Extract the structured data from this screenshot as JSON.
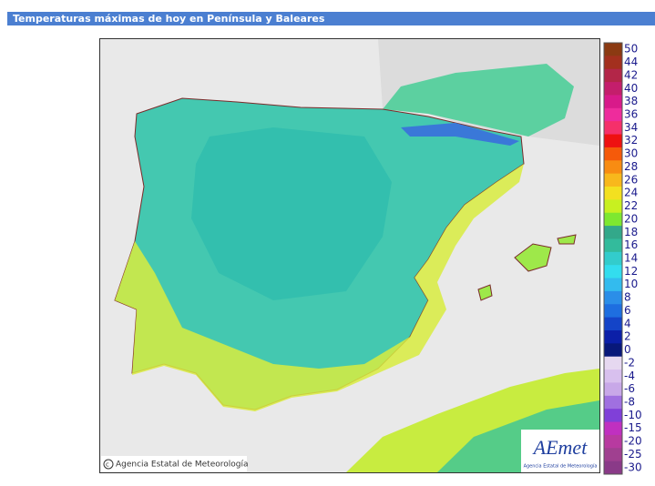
{
  "header": {
    "title": "Temperaturas máximas de hoy en Península y Baleares"
  },
  "legend": {
    "items": [
      {
        "label": 50,
        "color": "#8b3a12"
      },
      {
        "label": 44,
        "color": "#a3301e"
      },
      {
        "label": 42,
        "color": "#b32648"
      },
      {
        "label": 40,
        "color": "#c41e6c"
      },
      {
        "label": 38,
        "color": "#d81a8a"
      },
      {
        "label": 36,
        "color": "#ee2c9c"
      },
      {
        "label": 34,
        "color": "#f5306a"
      },
      {
        "label": 32,
        "color": "#ee1111"
      },
      {
        "label": 30,
        "color": "#f55a0a"
      },
      {
        "label": 28,
        "color": "#f88c12"
      },
      {
        "label": 26,
        "color": "#f8b81c"
      },
      {
        "label": 24,
        "color": "#f3e020"
      },
      {
        "label": 22,
        "color": "#c8f020"
      },
      {
        "label": 20,
        "color": "#7ee830"
      },
      {
        "label": 18,
        "color": "#33a88a"
      },
      {
        "label": 16,
        "color": "#33bb9c"
      },
      {
        "label": 14,
        "color": "#33cccc"
      },
      {
        "label": 12,
        "color": "#33ddee"
      },
      {
        "label": 10,
        "color": "#33bbee"
      },
      {
        "label": 8,
        "color": "#2b8ee8"
      },
      {
        "label": 6,
        "color": "#1e6ee0"
      },
      {
        "label": 4,
        "color": "#1444c8"
      },
      {
        "label": 2,
        "color": "#0b1fa8"
      },
      {
        "label": 0,
        "color": "#08187a"
      },
      {
        "label": -2,
        "color": "#e6d8f0"
      },
      {
        "label": -4,
        "color": "#d8c0ee"
      },
      {
        "label": -6,
        "color": "#c8a8e8"
      },
      {
        "label": -8,
        "color": "#a070e0"
      },
      {
        "label": -10,
        "color": "#8040d8"
      },
      {
        "label": -15,
        "color": "#c030c0"
      },
      {
        "label": -20,
        "color": "#b83aa0"
      },
      {
        "label": -25,
        "color": "#a04090"
      },
      {
        "label": -30,
        "color": "#8a3a88"
      }
    ]
  },
  "map": {
    "credit": "Agencia Estatal de Meteorología"
  },
  "logo": {
    "name": "AEmet",
    "subtitle": "Agencia Estatal de Meteorología"
  }
}
